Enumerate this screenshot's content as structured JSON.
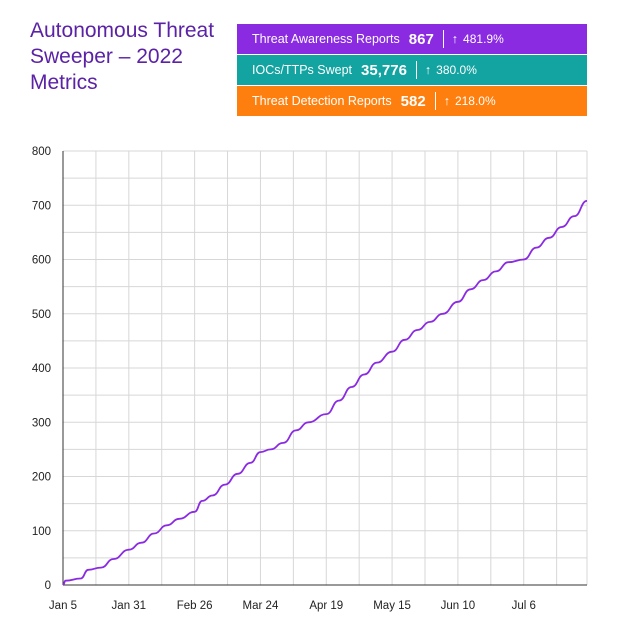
{
  "title": "Autonomous Threat Sweeper – 2022 Metrics",
  "metrics": [
    {
      "label": "Threat Awareness Reports",
      "value": "867",
      "change": "481.9%",
      "arrow": "↑",
      "color": "#8a2be2"
    },
    {
      "label": "IOCs/TTPs Swept",
      "value": "35,776",
      "change": "380.0%",
      "arrow": "↑",
      "color": "#13a3a0"
    },
    {
      "label": "Threat Detection Reports",
      "value": "582",
      "change": "218.0%",
      "arrow": "↑",
      "color": "#ff7f0e"
    }
  ],
  "chart_data": {
    "type": "line",
    "x_tick_labels": [
      "Jan 5",
      "Jan 31",
      "Feb 26",
      "Mar 24",
      "Apr 19",
      "May 15",
      "Jun 10",
      "Jul 6"
    ],
    "y_tick_labels": [
      "0",
      "100",
      "200",
      "300",
      "400",
      "500",
      "600",
      "700",
      "800"
    ],
    "ylim": [
      0,
      800
    ],
    "xlim": [
      "2022-01-05",
      "2022-07-31"
    ],
    "grid": true,
    "line_color": "#8a2be2",
    "series": [
      {
        "x": [
          "2022-01-05",
          "2022-01-06",
          "2022-01-12",
          "2022-01-15",
          "2022-01-20",
          "2022-01-25",
          "2022-01-31",
          "2022-02-05",
          "2022-02-10",
          "2022-02-15",
          "2022-02-20",
          "2022-02-26",
          "2022-03-01",
          "2022-03-05",
          "2022-03-10",
          "2022-03-15",
          "2022-03-20",
          "2022-03-24",
          "2022-03-28",
          "2022-04-02",
          "2022-04-07",
          "2022-04-12",
          "2022-04-19",
          "2022-04-24",
          "2022-04-29",
          "2022-05-04",
          "2022-05-09",
          "2022-05-15",
          "2022-05-20",
          "2022-05-25",
          "2022-05-30",
          "2022-06-04",
          "2022-06-10",
          "2022-06-15",
          "2022-06-20",
          "2022-06-25",
          "2022-06-30",
          "2022-07-06",
          "2022-07-11",
          "2022-07-16",
          "2022-07-21",
          "2022-07-26",
          "2022-07-31"
        ],
        "y": [
          0,
          8,
          12,
          28,
          32,
          48,
          65,
          78,
          95,
          110,
          122,
          135,
          155,
          165,
          185,
          205,
          225,
          245,
          250,
          262,
          285,
          300,
          315,
          340,
          365,
          388,
          410,
          430,
          452,
          470,
          485,
          500,
          522,
          545,
          562,
          578,
          595,
          600,
          622,
          640,
          660,
          680,
          708
        ]
      }
    ]
  }
}
